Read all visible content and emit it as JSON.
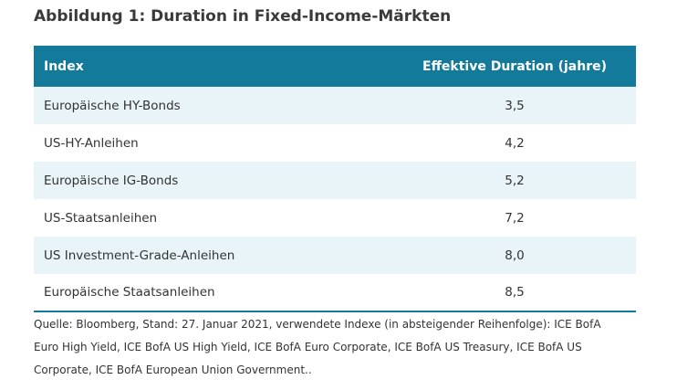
{
  "header": {
    "title": "Abbildung 1: Duration in Fixed-Income-Märkten"
  },
  "table": {
    "columns": [
      "Index",
      "Effektive Duration (jahre)"
    ],
    "rows": [
      [
        "Europäische HY-Bonds",
        "3,5"
      ],
      [
        "US-HY-Anleihen",
        "4,2"
      ],
      [
        "Europäische IG-Bonds",
        "5,2"
      ],
      [
        "US-Staatsanleihen",
        "7,2"
      ],
      [
        "US Investment-Grade-Anleihen",
        "8,0"
      ],
      [
        "Europäische Staatsanleihen",
        "8,5"
      ]
    ]
  },
  "footnote": "Quelle: Bloomberg, Stand: 27. Januar 2021, verwendete Indexe (in absteigender Reihenfolge): ICE BofA Euro High Yield, ICE BofA US High Yield, ICE BofA Euro Corporate, ICE BofA US Treasury, ICE BofA US Corporate, ICE BofA European Union Government.."
}
